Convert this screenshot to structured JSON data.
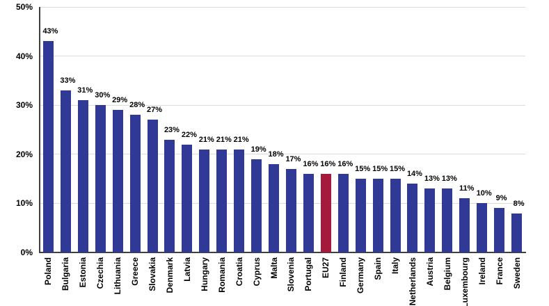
{
  "chart_data": {
    "type": "bar",
    "title": "",
    "xlabel": "",
    "ylabel": "",
    "categories": [
      "Poland",
      "Bulgaria",
      "Estonia",
      "Czechia",
      "Lithuania",
      "Greece",
      "Slovakia",
      "Denmark",
      "Latvia",
      "Hungary",
      "Romania",
      "Croatia",
      "Cyprus",
      "Malta",
      "Slovenia",
      "Portugal",
      "EU27",
      "Finland",
      "Germany",
      "Spain",
      "Italy",
      "Netherlands",
      "Austria",
      "Belgium",
      "Luxembourg",
      "Ireland",
      "France",
      "Sweden"
    ],
    "values": [
      43,
      33,
      31,
      30,
      29,
      28,
      27,
      23,
      22,
      21,
      21,
      21,
      19,
      18,
      17,
      16,
      16,
      16,
      15,
      15,
      15,
      14,
      13,
      13,
      11,
      10,
      9,
      8
    ],
    "value_labels": [
      "43%",
      "33%",
      "31%",
      "30%",
      "29%",
      "28%",
      "27%",
      "23%",
      "22%",
      "21%",
      "21%",
      "21%",
      "19%",
      "18%",
      "17%",
      "16%",
      "16%",
      "16%",
      "15%",
      "15%",
      "15%",
      "14%",
      "13%",
      "13%",
      "11%",
      "10%",
      "9%",
      "8%"
    ],
    "highlight_category": "EU27",
    "ylim": [
      0,
      50
    ],
    "ytick_values": [
      0,
      10,
      20,
      30,
      40,
      50
    ],
    "ytick_labels": [
      "0%",
      "10%",
      "20%",
      "30%",
      "40%",
      "50%"
    ],
    "grid": true,
    "legend": "none",
    "colors": {
      "bar": "#303a96",
      "highlight": "#a5193d",
      "gridline": "#dcdcdc",
      "axis": "#3f3f3f",
      "label_text": "#000000",
      "background": "#ffffff"
    }
  }
}
